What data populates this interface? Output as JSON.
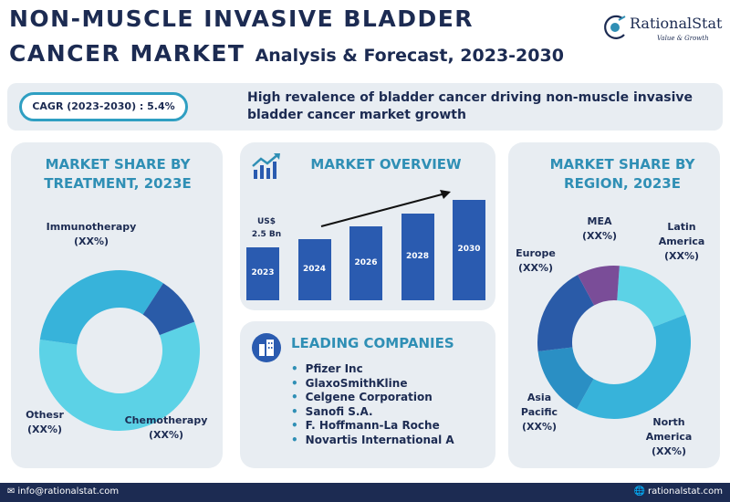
{
  "header": {
    "title_line1": "NON-MUSCLE INVASIVE BLADDER",
    "title_line2": "CANCER MARKET",
    "subtitle": "Analysis & Forecast, 2023-2030",
    "logo_name": "RationalStat",
    "logo_tagline": "Value & Growth"
  },
  "summary": {
    "cagr": "CAGR (2023-2030) : 5.4%",
    "headline": "High revalence of bladder cancer driving non-muscle invasive bladder cancer market growth"
  },
  "treatment": {
    "title": "MARKET SHARE BY TREATMENT, 2023E",
    "labels": {
      "immunotherapy": "Immunotherapy",
      "immunotherapy_value": "(XX%)",
      "chemotherapy": "Chemotherapy",
      "chemotherapy_value": "(XX%)",
      "others": "Othesr",
      "others_value": "(XX%)"
    },
    "slices": [
      {
        "share": 0.58,
        "color": "#5cd2e6"
      },
      {
        "share": 0.32,
        "color": "#37b3da"
      },
      {
        "share": 0.1,
        "color": "#2a5ba8"
      }
    ]
  },
  "overview": {
    "title": "MARKET OVERVIEW",
    "value_label": "US$",
    "value": "2.5 Bn",
    "bars": [
      {
        "year": "2023",
        "relative": 0.53
      },
      {
        "year": "2024",
        "relative": 0.61
      },
      {
        "year": "2026",
        "relative": 0.74
      },
      {
        "year": "2028",
        "relative": 0.86
      },
      {
        "year": "2030",
        "relative": 1.0
      }
    ],
    "bar_color": "#2a5bb0"
  },
  "companies": {
    "title": "LEADING COMPANIES",
    "items": [
      "Pfizer Inc",
      "GlaxoSmithKline",
      "Celgene Corporation",
      "Sanofi S.A.",
      "F. Hoffmann-La Roche",
      "Novartis International A"
    ]
  },
  "region": {
    "title": "MARKET SHARE BY REGION, 2023E",
    "labels": {
      "mea": "MEA",
      "mea_value": "(XX%)",
      "latin_america_1": "Latin",
      "latin_america_2": "America",
      "latin_america_value": "(XX%)",
      "europe": "Europe",
      "europe_value": "(XX%)",
      "asia_pacific_1": "Asia",
      "asia_pacific_2": "Pacific",
      "asia_pacific_value": "(XX%)",
      "north_america_1": "North",
      "north_america_2": "America",
      "north_america_value": "(XX%)"
    },
    "slices": [
      {
        "share": 0.18,
        "color": "#5cd2e6"
      },
      {
        "share": 0.39,
        "color": "#37b3da"
      },
      {
        "share": 0.15,
        "color": "#2a8fc4"
      },
      {
        "share": 0.19,
        "color": "#2a5ba8"
      },
      {
        "share": 0.09,
        "color": "#7a4d98"
      }
    ]
  },
  "footer": {
    "email": "info@rationalstat.com",
    "website": "rationalstat.com"
  }
}
